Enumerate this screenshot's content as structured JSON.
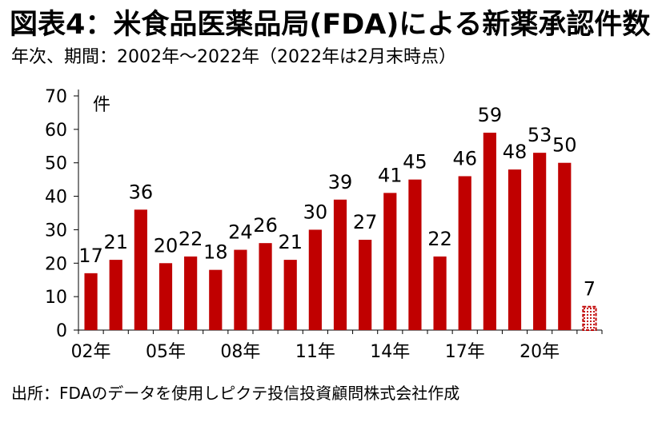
{
  "title": "図表4：米食品医薬品局(FDA)による新薬承認件数",
  "subtitle": "年次、期間：2002年～2022年（2022年は2月末時点）",
  "source": "出所：FDAのデータを使用しピクテ投信投資顧問株式会社作成",
  "colors": {
    "bar": "#c00000",
    "axis": "#000000",
    "partial_bar_border": "#c00000"
  },
  "chart_data": {
    "type": "bar",
    "ylabel": "件",
    "ylim": [
      0,
      70
    ],
    "yticks": [
      0,
      10,
      20,
      30,
      40,
      50,
      60,
      70
    ],
    "grid": false,
    "legend": "none",
    "categories": [
      "02年",
      "03年",
      "04年",
      "05年",
      "06年",
      "07年",
      "08年",
      "09年",
      "10年",
      "11年",
      "12年",
      "13年",
      "14年",
      "15年",
      "16年",
      "17年",
      "18年",
      "19年",
      "20年",
      "21年",
      "22年"
    ],
    "xtick_labels_shown": [
      "02年",
      "05年",
      "08年",
      "11年",
      "14年",
      "17年",
      "20年"
    ],
    "values": [
      17,
      21,
      36,
      20,
      22,
      18,
      24,
      26,
      21,
      30,
      39,
      27,
      41,
      45,
      22,
      46,
      59,
      48,
      53,
      50,
      7
    ],
    "partial_last_bar": true
  }
}
